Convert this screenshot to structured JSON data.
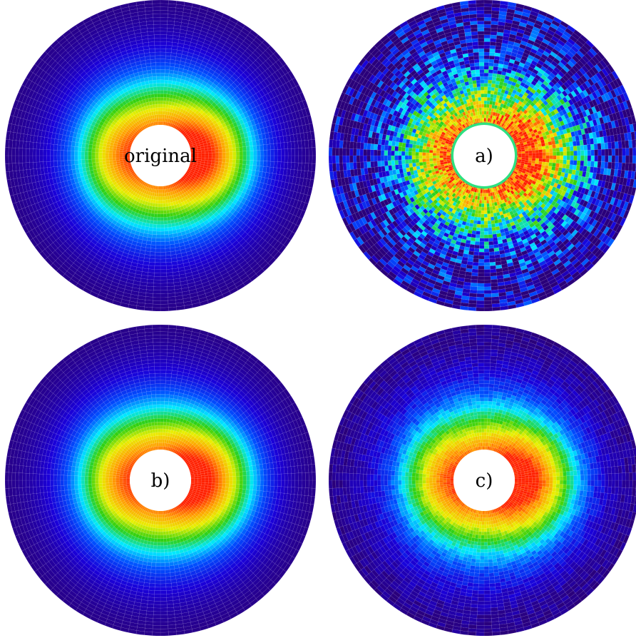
{
  "panels": [
    {
      "id": "original",
      "label": "original",
      "noise": 0.0,
      "hole_ring": false
    },
    {
      "id": "a",
      "label": "a)",
      "noise": 0.55,
      "hole_ring": true
    },
    {
      "id": "b",
      "label": "b)",
      "noise": 0.0,
      "hole_ring": false
    },
    {
      "id": "c",
      "label": "c)",
      "noise": 0.08,
      "hole_ring": false
    }
  ],
  "colormap": [
    "#2a007a",
    "#1a00d8",
    "#0050ff",
    "#00e8ff",
    "#30d010",
    "#e8f000",
    "#ffa000",
    "#ff2000"
  ],
  "grid_color": "#ffffff"
}
